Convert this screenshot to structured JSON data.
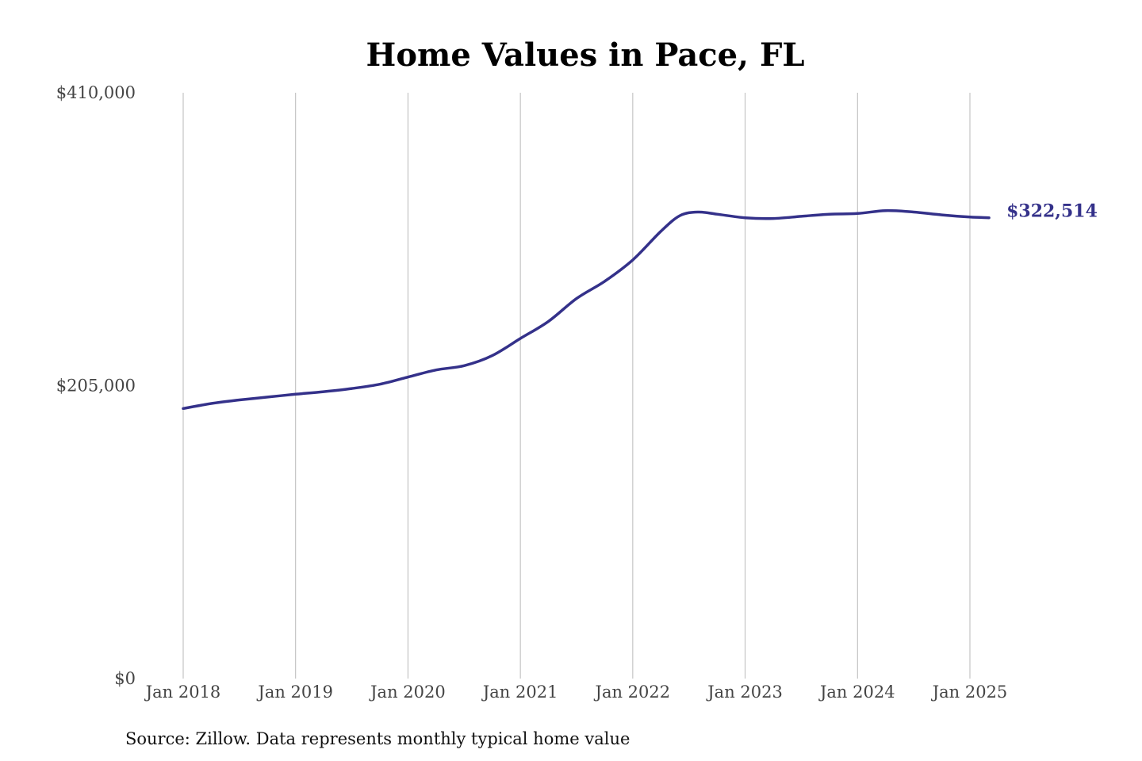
{
  "chart_data": {
    "type": "line",
    "title": "Home Values in Pace, FL",
    "xlabel": "",
    "ylabel": "",
    "source_note": "Source: Zillow. Data represents monthly typical home value",
    "ylim": [
      0,
      410000
    ],
    "y_ticks": [
      {
        "value": 0,
        "label": "$0"
      },
      {
        "value": 205000,
        "label": "$205,000"
      },
      {
        "value": 410000,
        "label": "$410,000"
      }
    ],
    "x_ticks": [
      {
        "value": 2018.0,
        "label": "Jan 2018"
      },
      {
        "value": 2019.0,
        "label": "Jan 2019"
      },
      {
        "value": 2020.0,
        "label": "Jan 2020"
      },
      {
        "value": 2021.0,
        "label": "Jan 2021"
      },
      {
        "value": 2022.0,
        "label": "Jan 2022"
      },
      {
        "value": 2023.0,
        "label": "Jan 2023"
      },
      {
        "value": 2024.0,
        "label": "Jan 2024"
      },
      {
        "value": 2025.0,
        "label": "Jan 2025"
      }
    ],
    "grid": {
      "vertical": true,
      "horizontal": false
    },
    "line_color": "#34318a",
    "end_label": "$322,514",
    "series": [
      {
        "name": "",
        "points": [
          {
            "x": 2018.0,
            "y": 189000
          },
          {
            "x": 2018.25,
            "y": 192500
          },
          {
            "x": 2018.5,
            "y": 195000
          },
          {
            "x": 2018.75,
            "y": 197000
          },
          {
            "x": 2019.0,
            "y": 199000
          },
          {
            "x": 2019.25,
            "y": 200800
          },
          {
            "x": 2019.5,
            "y": 203000
          },
          {
            "x": 2019.75,
            "y": 206000
          },
          {
            "x": 2020.0,
            "y": 211000
          },
          {
            "x": 2020.25,
            "y": 216000
          },
          {
            "x": 2020.5,
            "y": 219000
          },
          {
            "x": 2020.75,
            "y": 226000
          },
          {
            "x": 2021.0,
            "y": 238000
          },
          {
            "x": 2021.25,
            "y": 250000
          },
          {
            "x": 2021.5,
            "y": 266000
          },
          {
            "x": 2021.75,
            "y": 278000
          },
          {
            "x": 2022.0,
            "y": 293000
          },
          {
            "x": 2022.25,
            "y": 313000
          },
          {
            "x": 2022.42,
            "y": 324000
          },
          {
            "x": 2022.58,
            "y": 326500
          },
          {
            "x": 2022.75,
            "y": 325000
          },
          {
            "x": 2023.0,
            "y": 322500
          },
          {
            "x": 2023.25,
            "y": 322000
          },
          {
            "x": 2023.5,
            "y": 323500
          },
          {
            "x": 2023.75,
            "y": 325000
          },
          {
            "x": 2024.0,
            "y": 325500
          },
          {
            "x": 2024.25,
            "y": 327500
          },
          {
            "x": 2024.5,
            "y": 326500
          },
          {
            "x": 2024.75,
            "y": 324500
          },
          {
            "x": 2025.0,
            "y": 323000
          },
          {
            "x": 2025.17,
            "y": 322514
          }
        ]
      }
    ]
  }
}
